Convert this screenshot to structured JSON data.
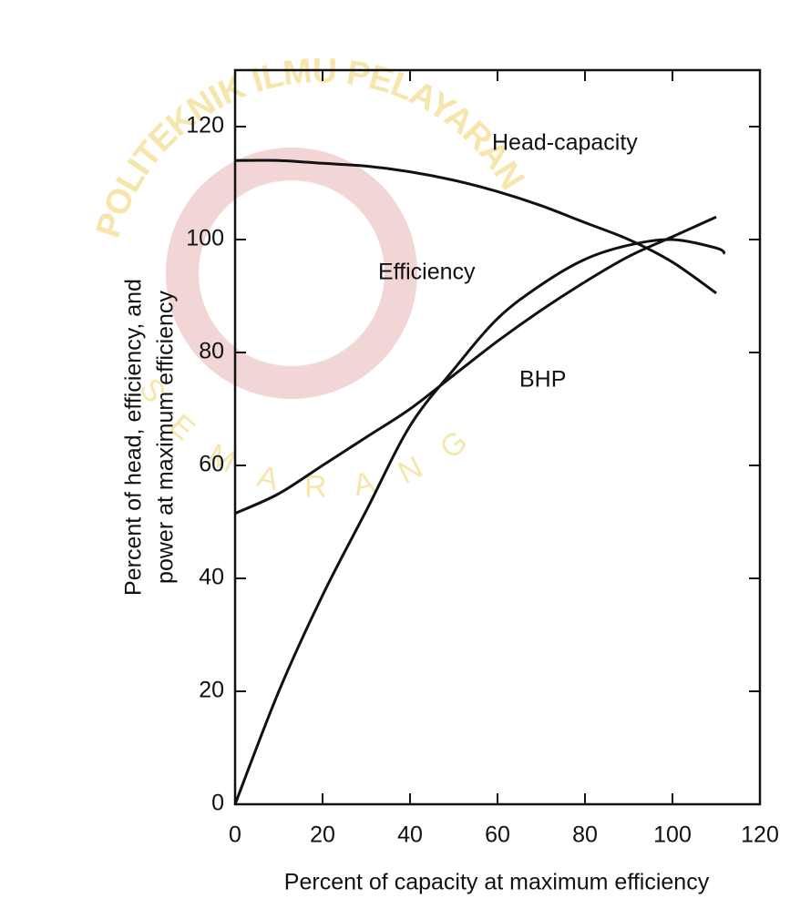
{
  "chart_data": {
    "type": "line",
    "x_label": "Percent of capacity at maximum efficiency",
    "y_label": [
      "Percent of head, efficiency, and",
      "power at maximum efficiency"
    ],
    "xlim": [
      0,
      120
    ],
    "ylim": [
      0,
      130
    ],
    "xticks": [
      0,
      20,
      40,
      60,
      80,
      100,
      120
    ],
    "yticks": [
      0,
      20,
      40,
      60,
      80,
      100,
      120
    ],
    "color": "#111111",
    "series": [
      {
        "name": "Head-capacity",
        "x": [
          0,
          10,
          20,
          30,
          40,
          50,
          60,
          70,
          80,
          90,
          100,
          110
        ],
        "values": [
          114,
          114,
          113.5,
          113,
          112,
          110.5,
          108.5,
          106,
          103,
          100,
          96,
          90.5
        ]
      },
      {
        "name": "Efficiency",
        "x": [
          0,
          10,
          20,
          30,
          40,
          50,
          60,
          70,
          80,
          90,
          100,
          110,
          112
        ],
        "values": [
          0,
          20,
          37,
          52,
          67,
          77,
          86,
          92,
          96.5,
          99,
          100,
          98.5,
          97.5
        ]
      },
      {
        "name": "BHP",
        "x": [
          0,
          10,
          20,
          30,
          40,
          50,
          60,
          70,
          80,
          90,
          100,
          110
        ],
        "values": [
          51.5,
          55,
          60,
          65,
          70,
          76,
          82,
          87.5,
          92.5,
          97,
          100.5,
          104
        ]
      }
    ],
    "watermark": [
      "POLITEKNIK ILMU PELAYARAN",
      "SEMARANG"
    ]
  }
}
